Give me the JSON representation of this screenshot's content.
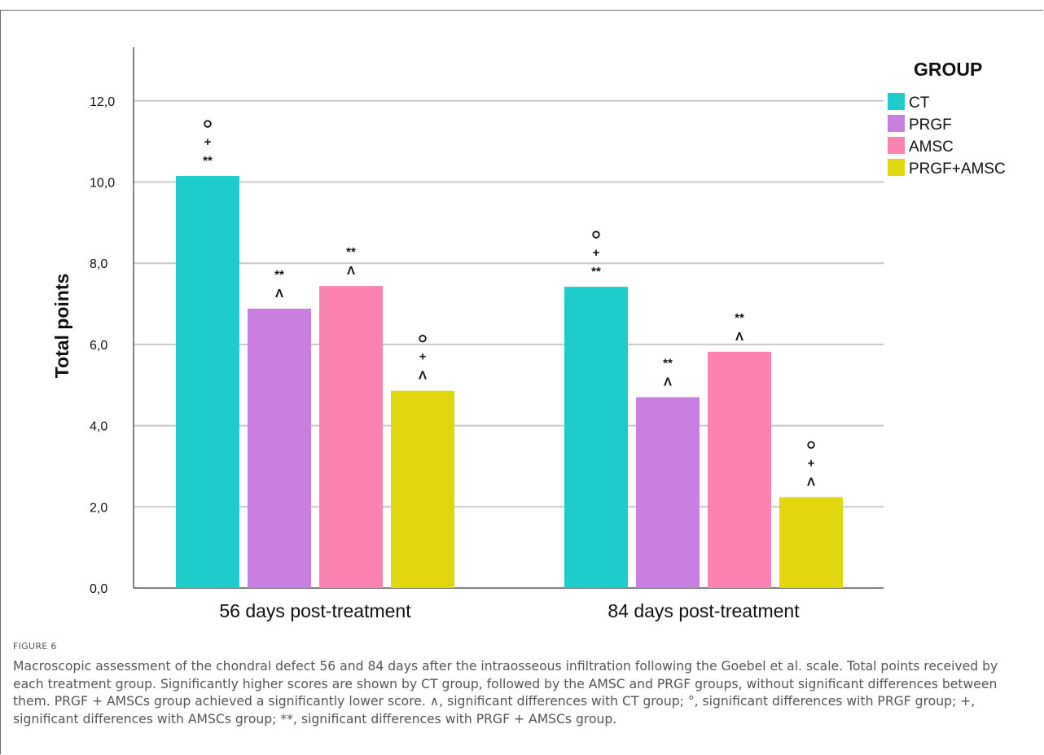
{
  "figure": {
    "label": "FIGURE 6",
    "caption": "Macroscopic assessment of the chondral defect 56 and 84 days after the intraosseous infiltration following the Goebel et al. scale. Total points received by each treatment group. Significantly higher scores are shown by CT group, followed by the AMSC and PRGF groups, without significant differences between them. PRGF + AMSCs group achieved a significantly lower score. ∧, significant differences with CT group; °, significant differences with PRGF group; +, significant differences with AMSCs group; **, significant differences with PRGF + AMSCs group."
  },
  "chart_data": {
    "type": "bar",
    "title": "",
    "xlabel": "",
    "ylabel": "Total points",
    "ylim": [
      0,
      13.2
    ],
    "yticks": [
      0,
      2,
      4,
      6,
      8,
      10,
      12
    ],
    "ytick_labels": [
      "0,0",
      "2,0",
      "4,0",
      "6,0",
      "8,0",
      "10,0",
      "12,0"
    ],
    "grid": true,
    "legend": {
      "title": "GROUP",
      "position": "top-right"
    },
    "categories": [
      "56 days post-treatment",
      "84 days post-treatment"
    ],
    "series": [
      {
        "name": "CT",
        "color": "#1ecdcb",
        "values": [
          10.15,
          7.42
        ],
        "annotations": [
          [
            "o",
            "+",
            "**"
          ],
          [
            "o",
            "+",
            "**"
          ]
        ]
      },
      {
        "name": "PRGF",
        "color": "#c97fe2",
        "values": [
          6.88,
          4.7
        ],
        "annotations": [
          [
            "**",
            "^"
          ],
          [
            "**",
            "^"
          ]
        ]
      },
      {
        "name": "AMSC",
        "color": "#fb82b1",
        "values": [
          7.44,
          5.82
        ],
        "annotations": [
          [
            "**",
            "^"
          ],
          [
            "**",
            "^"
          ]
        ]
      },
      {
        "name": "PRGF+AMSC",
        "color": "#e2d70e",
        "values": [
          4.86,
          2.24
        ],
        "annotations": [
          [
            "o",
            "+",
            "^"
          ],
          [
            "o",
            "+",
            "^"
          ]
        ]
      }
    ]
  }
}
